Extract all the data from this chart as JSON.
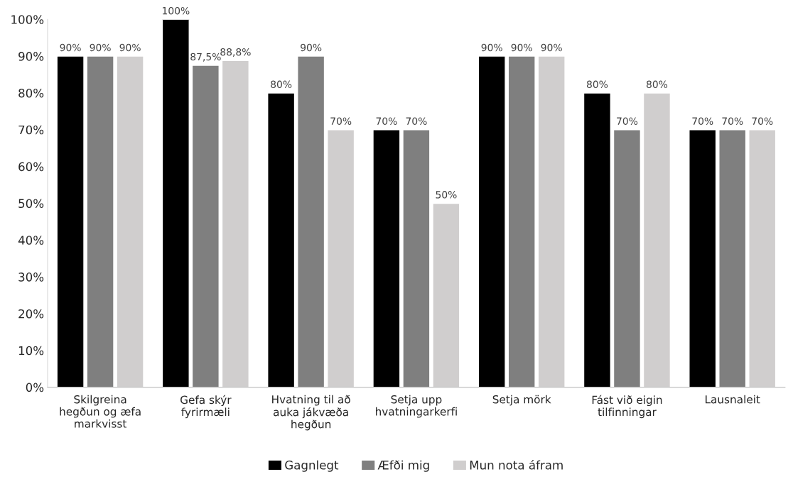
{
  "chart_data": {
    "type": "bar",
    "categories": [
      "Skilgreina hegðun og æfa markvisst",
      "Gefa skýr fyrirmæli",
      "Hvatning til að auka jákvæða hegðun",
      "Setja upp hvatningarkerfi",
      "Setja mörk",
      "Fást við eigin tilfinningar",
      "Lausnaleit"
    ],
    "series": [
      {
        "name": "Gagnlegt",
        "color": "#000000",
        "values": [
          90,
          100,
          80,
          70,
          90,
          80,
          70
        ],
        "value_labels": [
          "90%",
          "100%",
          "80%",
          "70%",
          "90%",
          "80%",
          "70%"
        ]
      },
      {
        "name": "Æfði mig",
        "color": "#7f7f7f",
        "values": [
          90,
          87.5,
          90,
          70,
          90,
          70,
          70
        ],
        "value_labels": [
          "90%",
          "87,5%",
          "90%",
          "70%",
          "90%",
          "70%",
          "70%"
        ]
      },
      {
        "name": "Mun nota áfram",
        "color": "#d0cece",
        "values": [
          90,
          88.8,
          70,
          50,
          90,
          80,
          70
        ],
        "value_labels": [
          "90%",
          "88,8%",
          "70%",
          "50%",
          "90%",
          "80%",
          "70%"
        ]
      }
    ],
    "ylim": [
      0,
      100
    ],
    "yticks": [
      {
        "value": 0,
        "label": "0%"
      },
      {
        "value": 10,
        "label": "10%"
      },
      {
        "value": 20,
        "label": "20%"
      },
      {
        "value": 30,
        "label": "30%"
      },
      {
        "value": 40,
        "label": "40%"
      },
      {
        "value": 50,
        "label": "50%"
      },
      {
        "value": 60,
        "label": "60%"
      },
      {
        "value": 70,
        "label": "70%"
      },
      {
        "value": 80,
        "label": "80%"
      },
      {
        "value": 90,
        "label": "90%"
      },
      {
        "value": 100,
        "label": "100%"
      }
    ],
    "grid": false,
    "legend": "bottom"
  }
}
